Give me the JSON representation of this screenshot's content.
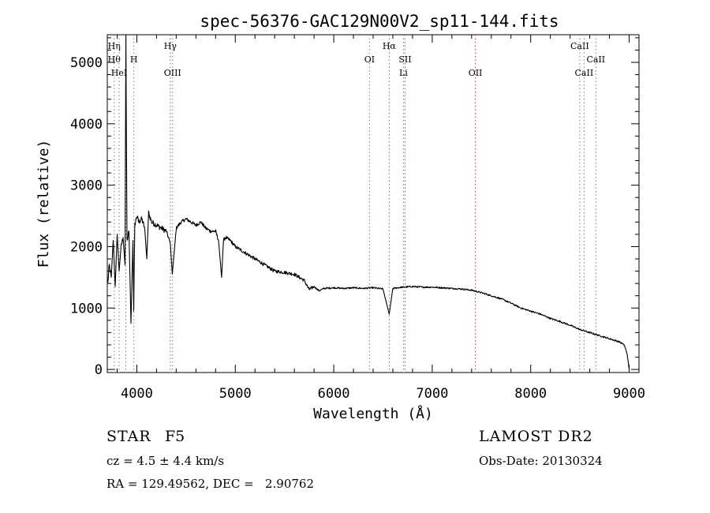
{
  "chart_data": {
    "type": "line",
    "title": "spec-56376-GAC129N00V2_sp11-144.fits",
    "xlabel": "Wavelength (Å)",
    "ylabel": "Flux (relative)",
    "xlim": [
      3700,
      9100
    ],
    "ylim": [
      -50,
      5450
    ],
    "x_ticks": [
      4000,
      5000,
      6000,
      7000,
      8000,
      9000
    ],
    "y_ticks": [
      0,
      1000,
      2000,
      3000,
      4000,
      5000
    ],
    "grid": false,
    "series": [
      {
        "x": [
          3705,
          3720,
          3740,
          3760,
          3780,
          3800,
          3820,
          3840,
          3860,
          3880,
          3889,
          3900,
          3920,
          3940,
          3960,
          3968,
          3980,
          4000,
          4020,
          4050,
          4080,
          4101,
          4120,
          4150,
          4200,
          4250,
          4300,
          4340,
          4360,
          4400,
          4450,
          4500,
          4550,
          4600,
          4650,
          4700,
          4750,
          4800,
          4830,
          4861,
          4880,
          4900,
          4950,
          5000,
          5100,
          5200,
          5300,
          5400,
          5500,
          5600,
          5700,
          5750,
          5800,
          5850,
          5900,
          6000,
          6100,
          6200,
          6300,
          6400,
          6500,
          6563,
          6600,
          6700,
          6800,
          6900,
          7000,
          7100,
          7200,
          7300,
          7400,
          7500,
          7600,
          7700,
          7800,
          7900,
          8000,
          8100,
          8200,
          8300,
          8400,
          8500,
          8600,
          8700,
          8800,
          8900,
          8950,
          8980,
          9000
        ],
        "y": [
          1400,
          1700,
          1500,
          2100,
          1350,
          2200,
          1600,
          2000,
          2150,
          1700,
          5450,
          2100,
          2250,
          750,
          2100,
          950,
          2350,
          2500,
          2400,
          2450,
          2300,
          1800,
          2550,
          2400,
          2350,
          2300,
          2250,
          2050,
          1550,
          2300,
          2400,
          2450,
          2400,
          2350,
          2400,
          2300,
          2250,
          2250,
          2100,
          1500,
          2100,
          2150,
          2100,
          2000,
          1900,
          1800,
          1700,
          1600,
          1580,
          1550,
          1450,
          1300,
          1350,
          1280,
          1320,
          1330,
          1320,
          1330,
          1320,
          1330,
          1310,
          900,
          1320,
          1340,
          1350,
          1340,
          1340,
          1330,
          1320,
          1310,
          1290,
          1250,
          1200,
          1150,
          1080,
          1000,
          950,
          900,
          830,
          780,
          720,
          650,
          600,
          550,
          500,
          450,
          400,
          250,
          0
        ]
      }
    ],
    "line_markers": [
      {
        "x": 3770,
        "labels": [
          "Hη",
          "Hθ"
        ],
        "rows": [
          0,
          1
        ],
        "color": "#808080"
      },
      {
        "x": 3820,
        "labels": [
          "HeI"
        ],
        "rows": [
          2
        ],
        "color": "#808080"
      },
      {
        "x": 3889,
        "labels": [],
        "rows": [],
        "color": "#d84040"
      },
      {
        "x": 3970,
        "labels": [
          "H"
        ],
        "rows": [
          1
        ],
        "color": "#808080"
      },
      {
        "x": 4340,
        "labels": [
          "Hγ"
        ],
        "rows": [
          0
        ],
        "color": "#d84040"
      },
      {
        "x": 4363,
        "labels": [
          "OIII"
        ],
        "rows": [
          2
        ],
        "color": "#808080"
      },
      {
        "x": 6363,
        "labels": [
          "OI"
        ],
        "rows": [
          1
        ],
        "color": "#808080"
      },
      {
        "x": 6563,
        "labels": [
          "Hα"
        ],
        "rows": [
          0
        ],
        "color": "#d84040"
      },
      {
        "x": 6708,
        "labels": [
          "Li"
        ],
        "rows": [
          2
        ],
        "color": "#808080"
      },
      {
        "x": 6724,
        "labels": [
          "SII"
        ],
        "rows": [
          1
        ],
        "color": "#d84040"
      },
      {
        "x": 7438,
        "labels": [
          "OII"
        ],
        "rows": [
          2
        ],
        "color": "#d84040"
      },
      {
        "x": 8498,
        "labels": [
          "CaII"
        ],
        "rows": [
          0
        ],
        "color": "#808080"
      },
      {
        "x": 8542,
        "labels": [
          "CaII"
        ],
        "rows": [
          2
        ],
        "color": "#808080"
      },
      {
        "x": 8662,
        "labels": [
          "CaII"
        ],
        "rows": [
          1
        ],
        "color": "#808080"
      }
    ]
  },
  "info": {
    "class_label": "STAR",
    "subclass": "F5",
    "survey": "LAMOST DR2",
    "cz": "cz = 4.5 ± 4.4 km/s",
    "obs_date": "Obs-Date: 20130324",
    "coords": "RA = 129.49562, DEC =   2.90762"
  }
}
